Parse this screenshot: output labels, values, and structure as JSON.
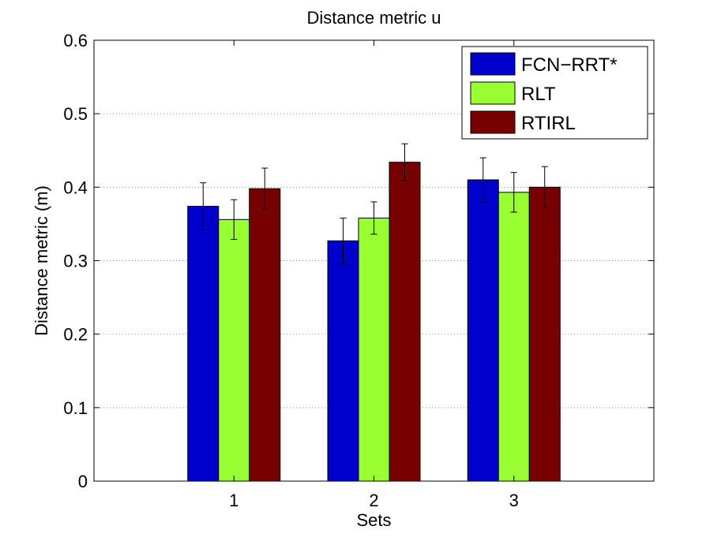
{
  "chart_data": {
    "type": "bar",
    "title": "Distance metric u",
    "xlabel": "Sets",
    "ylabel": "Distance metric (m)",
    "categories": [
      "1",
      "2",
      "3"
    ],
    "ylim": [
      0,
      0.6
    ],
    "yticks": [
      0,
      0.1,
      0.2,
      0.3,
      0.4,
      0.5,
      0.6
    ],
    "ytick_labels": [
      "0",
      "0.1",
      "0.2",
      "0.3",
      "0.4",
      "0.5",
      "0.6"
    ],
    "grid": "horizontal dotted",
    "legend_position": "top-right",
    "series": [
      {
        "name": "FCN−RRT*",
        "color": "#0000cc",
        "values": [
          0.374,
          0.327,
          0.41
        ],
        "errors": [
          0.032,
          0.031,
          0.03
        ]
      },
      {
        "name": "RLT",
        "color": "#99ff33",
        "values": [
          0.356,
          0.358,
          0.393
        ],
        "errors": [
          0.027,
          0.022,
          0.027
        ]
      },
      {
        "name": "RTIRL",
        "color": "#770000",
        "values": [
          0.398,
          0.434,
          0.4
        ],
        "errors": [
          0.028,
          0.025,
          0.028
        ]
      }
    ]
  }
}
